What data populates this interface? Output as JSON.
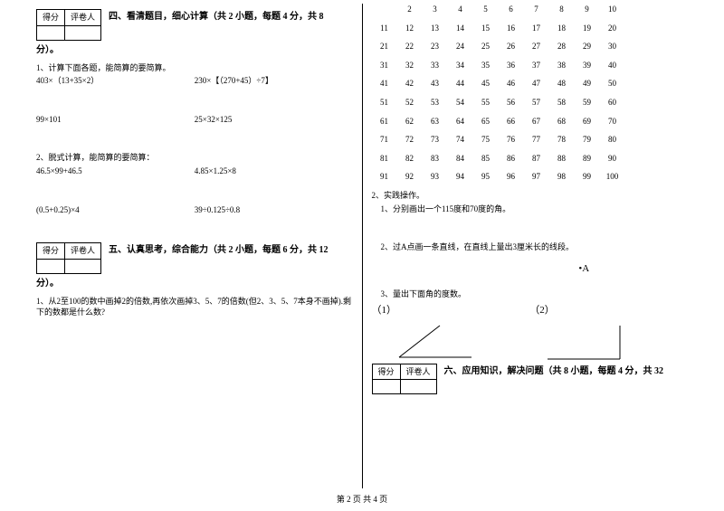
{
  "score_header": {
    "score": "得分",
    "grader": "评卷人"
  },
  "section4": {
    "title": "四、看清题目，细心计算（共 2 小题，每题 4 分，共 8",
    "tail": "分）。",
    "q1": "1、计算下面各题，能简算的要简算。",
    "q1_e1": "403×（13+35×2）",
    "q1_e2": "230×【（270+45）÷7】",
    "q1_e3": "99×101",
    "q1_e4": "25×32×125",
    "q2": "2、脱式计算，能简算的要简算：",
    "q2_e1": "46.5×99+46.5",
    "q2_e2": "4.85×1.25×8",
    "q2_e3": "(0.5+0.25)×4",
    "q2_e4": "39÷0.125÷0.8"
  },
  "section5": {
    "title": "五、认真思考，综合能力（共 2 小题，每题 6 分，共 12",
    "tail": "分）。",
    "q1": "1、从2至100的数中画掉2的倍数,再依次画掉3、5、7的倍数(但2、3、5、7本身不画掉).剩下的数都是什么数?"
  },
  "numgrid": {
    "rows": [
      [
        "",
        "2",
        "3",
        "4",
        "5",
        "6",
        "7",
        "8",
        "9",
        "10"
      ],
      [
        "11",
        "12",
        "13",
        "14",
        "15",
        "16",
        "17",
        "18",
        "19",
        "20"
      ],
      [
        "21",
        "22",
        "23",
        "24",
        "25",
        "26",
        "27",
        "28",
        "29",
        "30"
      ],
      [
        "31",
        "32",
        "33",
        "34",
        "35",
        "36",
        "37",
        "38",
        "39",
        "40"
      ],
      [
        "41",
        "42",
        "43",
        "44",
        "45",
        "46",
        "47",
        "48",
        "49",
        "50"
      ],
      [
        "51",
        "52",
        "53",
        "54",
        "55",
        "56",
        "57",
        "58",
        "59",
        "60"
      ],
      [
        "61",
        "62",
        "63",
        "64",
        "65",
        "66",
        "67",
        "68",
        "69",
        "70"
      ],
      [
        "71",
        "72",
        "73",
        "74",
        "75",
        "76",
        "77",
        "78",
        "79",
        "80"
      ],
      [
        "81",
        "82",
        "83",
        "84",
        "85",
        "86",
        "87",
        "88",
        "89",
        "90"
      ],
      [
        "91",
        "92",
        "93",
        "94",
        "95",
        "96",
        "97",
        "98",
        "99",
        "100"
      ]
    ]
  },
  "practice": {
    "title": "2、实践操作。",
    "p1": "1、分别画出一个115度和70度的角。",
    "p2": "2、过A点画一条直线，在直线上量出3厘米长的线段。",
    "pointA": "•A",
    "p3": "3、量出下面角的度数。",
    "a1": "（1）",
    "a2": "（2）"
  },
  "section6": {
    "title": "六、应用知识，解决问题（共 8 小题，每题 4 分，共 32"
  },
  "footer": "第 2 页 共 4 页",
  "colors": {
    "text": "#000000",
    "bg": "#ffffff",
    "line": "#000000"
  }
}
